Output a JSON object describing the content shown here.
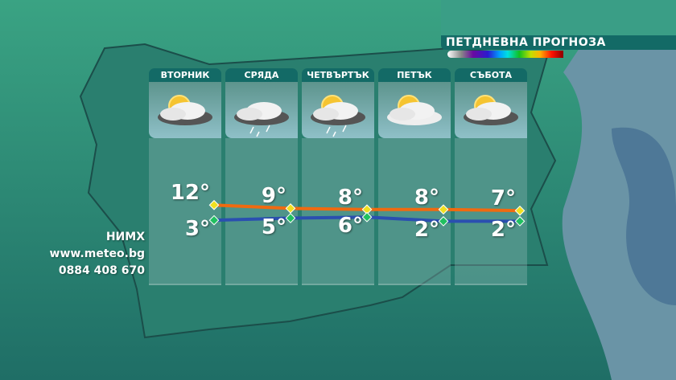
{
  "title": "ПЕТДНЕВНА ПРОГНОЗА",
  "colors": {
    "high_line": "#f06a10",
    "low_line": "#2a4fb0",
    "header": "#136a66",
    "high_marker": "#f0e020",
    "low_marker": "#20c060"
  },
  "days": [
    {
      "name": "ВТОРНИК",
      "icon": "sun-behind-dark-cloud-icon",
      "high": 12,
      "low": 3,
      "high_label": "12°",
      "low_label": "3°"
    },
    {
      "name": "СРЯДА",
      "icon": "cloud-rain-icon",
      "high": 9,
      "low": 5,
      "high_label": "9°",
      "low_label": "5°"
    },
    {
      "name": "ЧЕТВЪРТЪК",
      "icon": "sun-cloud-rain-icon",
      "high": 8,
      "low": 6,
      "high_label": "8°",
      "low_label": "6°"
    },
    {
      "name": "ПЕТЪК",
      "icon": "sun-behind-cloud-icon",
      "high": 8,
      "low": 2,
      "high_label": "8°",
      "low_label": "2°"
    },
    {
      "name": "СЪБОТА",
      "icon": "sun-behind-dark-cloud-icon",
      "high": 7,
      "low": 2,
      "high_label": "7°",
      "low_label": "2°"
    }
  ],
  "contact": {
    "org": "НИМХ",
    "site": "www.meteo.bg",
    "phone": "0884 408 670"
  }
}
